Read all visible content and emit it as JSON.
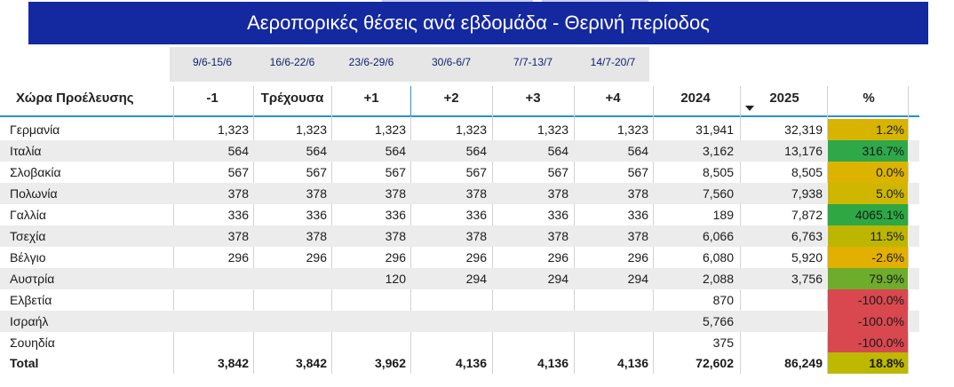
{
  "title": "Αεροπορικές θέσεις ανά εβδομάδα - Θερινή περίοδος",
  "date_ranges": [
    "9/6-15/6",
    "16/6-22/6",
    "23/6-29/6",
    "30/6-6/7",
    "7/7-13/7",
    "14/7-20/7"
  ],
  "headers": [
    "Χώρα Προέλευσης",
    "-1",
    "Τρέχουσα",
    "+1",
    "+2",
    "+3",
    "+4",
    "2024",
    "2025",
    "%"
  ],
  "sort_icon": "sort-descending-icon",
  "rows": [
    {
      "country": "Γερμανία",
      "values": [
        "1,323",
        "1,323",
        "1,323",
        "1,323",
        "1,323",
        "1,323",
        "31,941",
        "32,319"
      ],
      "pct": "1.2%",
      "color": "#d7b400"
    },
    {
      "country": "Ιταλία",
      "values": [
        "564",
        "564",
        "564",
        "564",
        "564",
        "564",
        "3,162",
        "13,176"
      ],
      "pct": "316.7%",
      "color": "#2fa84a"
    },
    {
      "country": "Σλοβακία",
      "values": [
        "567",
        "567",
        "567",
        "567",
        "567",
        "567",
        "8,505",
        "8,505"
      ],
      "pct": "0.0%",
      "color": "#dcb400"
    },
    {
      "country": "Πολωνία",
      "values": [
        "378",
        "378",
        "378",
        "378",
        "378",
        "378",
        "7,560",
        "7,938"
      ],
      "pct": "5.0%",
      "color": "#cfb600"
    },
    {
      "country": "Γαλλία",
      "values": [
        "336",
        "336",
        "336",
        "336",
        "336",
        "336",
        "189",
        "7,872"
      ],
      "pct": "4065.1%",
      "color": "#2ea844"
    },
    {
      "country": "Τσεχία",
      "values": [
        "378",
        "378",
        "378",
        "378",
        "378",
        "378",
        "6,066",
        "6,763"
      ],
      "pct": "11.5%",
      "color": "#bcb600"
    },
    {
      "country": "Βέλγιο",
      "values": [
        "296",
        "296",
        "296",
        "296",
        "296",
        "296",
        "6,080",
        "5,920"
      ],
      "pct": "-2.6%",
      "color": "#e2b000"
    },
    {
      "country": "Αυστρία",
      "values": [
        "",
        "",
        "120",
        "294",
        "294",
        "294",
        "2,088",
        "3,756"
      ],
      "pct": "79.9%",
      "color": "#6eac2c"
    },
    {
      "country": "Ελβετία",
      "values": [
        "",
        "",
        "",
        "",
        "",
        "",
        "870",
        ""
      ],
      "pct": "-100.0%",
      "color": "#d9484f"
    },
    {
      "country": "Ισραήλ",
      "values": [
        "",
        "",
        "",
        "",
        "",
        "",
        "5,766",
        ""
      ],
      "pct": "-100.0%",
      "color": "#d9484f"
    },
    {
      "country": "Σουηδία",
      "values": [
        "",
        "",
        "",
        "",
        "",
        "",
        "375",
        ""
      ],
      "pct": "-100.0%",
      "color": "#d9484f"
    }
  ],
  "total": {
    "label": "Total",
    "values": [
      "3,842",
      "3,842",
      "3,962",
      "4,136",
      "4,136",
      "4,136",
      "72,602",
      "86,249"
    ],
    "pct": "18.8%",
    "color": "#bdb800"
  }
}
